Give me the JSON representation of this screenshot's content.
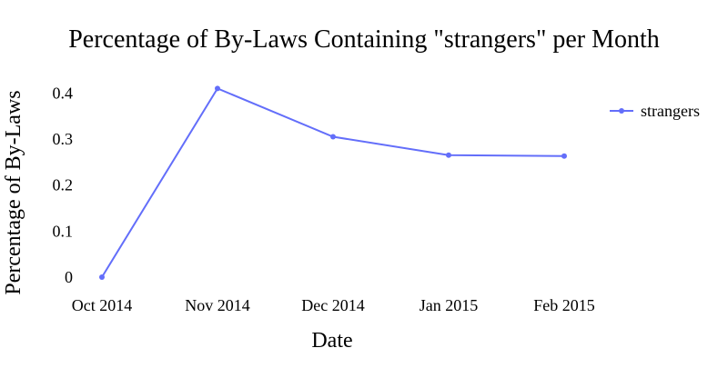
{
  "chart_data": {
    "type": "line",
    "title": "Percentage of By-Laws Containing \"strangers\" per Month",
    "xlabel": "Date",
    "ylabel": "Percentage of By-Laws",
    "categories": [
      "Oct 2014",
      "Nov 2014",
      "Dec 2014",
      "Jan 2015",
      "Feb 2015"
    ],
    "yticks": [
      "0",
      "0.1",
      "0.2",
      "0.3",
      "0.4"
    ],
    "ylim": [
      0,
      0.46
    ],
    "grid": false,
    "legend_position": "top-right",
    "series": [
      {
        "name": "strangers",
        "color": "#636efa",
        "values": [
          0.0,
          0.41,
          0.305,
          0.265,
          0.263
        ]
      }
    ]
  }
}
